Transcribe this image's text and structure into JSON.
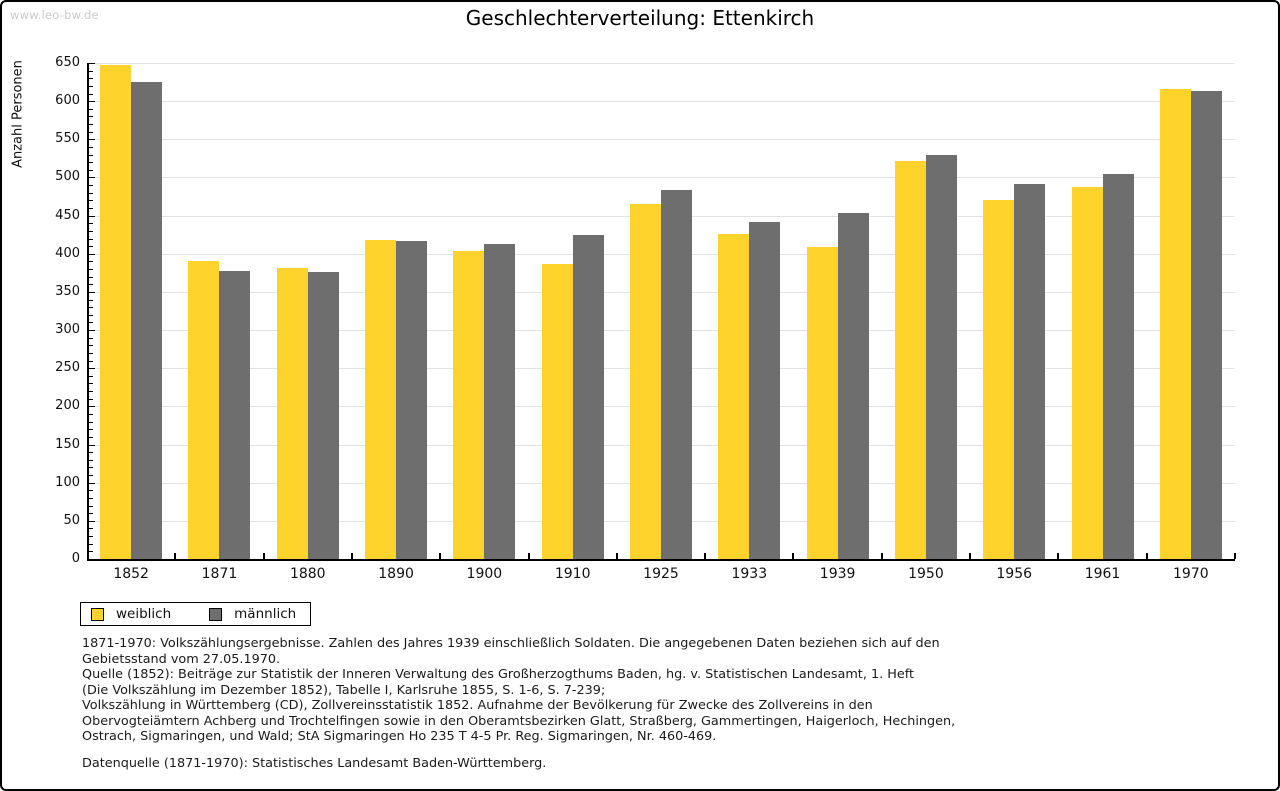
{
  "watermark": "www.leo-bw.de",
  "chart_data": {
    "type": "bar",
    "title": "Geschlechterverteilung: Ettenkirch",
    "xlabel": "",
    "ylabel": "Anzahl Personen",
    "ylim": [
      0,
      650
    ],
    "ytick_step": 50,
    "yticks": [
      0,
      50,
      100,
      150,
      200,
      250,
      300,
      350,
      400,
      450,
      500,
      550,
      600,
      650
    ],
    "minor_tick_step": 10,
    "grid": true,
    "legend_position": "bottom-left",
    "categories": [
      "1852",
      "1871",
      "1880",
      "1890",
      "1900",
      "1910",
      "1925",
      "1933",
      "1939",
      "1950",
      "1956",
      "1961",
      "1970"
    ],
    "series": [
      {
        "name": "weiblich",
        "color": "#FDD32C",
        "values": [
          648,
          390,
          382,
          418,
          404,
          386,
          465,
          426,
          409,
          522,
          471,
          487,
          616
        ]
      },
      {
        "name": "männlich",
        "color": "#6E6E6E",
        "values": [
          625,
          378,
          376,
          417,
          413,
          425,
          483,
          441,
          453,
          530,
          492,
          504,
          613
        ]
      }
    ]
  },
  "legend": {
    "items": [
      {
        "label": "weiblich",
        "color": "#FDD32C"
      },
      {
        "label": "männlich",
        "color": "#6E6E6E"
      }
    ]
  },
  "footnotes": {
    "block1": "1871-1970: Volkszählungsergebnisse. Zahlen des Jahres 1939 einschließlich Soldaten. Die angegebenen Daten beziehen sich auf den\nGebietsstand vom 27.05.1970.\nQuelle (1852): Beiträge zur Statistik der Inneren Verwaltung des Großherzogthums Baden, hg. v. Statistischen Landesamt, 1. Heft\n(Die Volkszählung im Dezember 1852), Tabelle I, Karlsruhe 1855, S. 1-6, S. 7-239;\nVolkszählung in Württemberg (CD), Zollvereinsstatistik 1852. Aufnahme der Bevölkerung für Zwecke des Zollvereins in den\nObervogteiämtern Achberg und Trochtelfingen sowie in den Oberamtsbezirken Glatt, Straßberg, Gammertingen, Haigerloch, Hechingen,\nOstrach, Sigmaringen, und Wald; StA Sigmaringen Ho 235 T 4-5 Pr. Reg. Sigmaringen, Nr. 460-469.",
    "block2": "Datenquelle (1871-1970): Statistisches Landesamt Baden-Württemberg."
  }
}
